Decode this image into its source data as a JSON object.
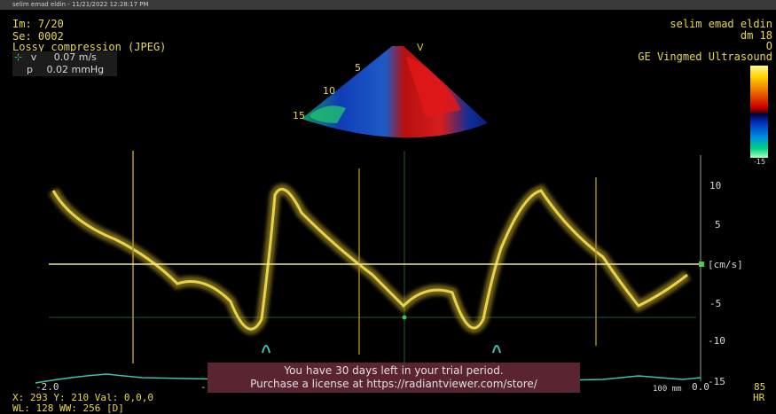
{
  "window": {
    "title": "selim emad eldin - 11/21/2022 12:28:17 PM"
  },
  "overlay_left": {
    "image": "Im: 7/20",
    "series": "Se: 0002",
    "compression": "Lossy compression (JPEG)",
    "measure": {
      "v_label": "v",
      "v_value": "0.07 m/s",
      "p_label": "p",
      "p_value": "0.02 mmHg"
    }
  },
  "overlay_right": {
    "patient": "selim emad eldin",
    "study": "dm 18",
    "sex": "O",
    "device": "GE Vingmed Ultrasound"
  },
  "sector": {
    "depth_labels": [
      "5",
      "10",
      "15"
    ],
    "marker": "V"
  },
  "colorbar": {
    "bottom_label": "-15"
  },
  "doppler": {
    "axis_labels": [
      "10",
      "5",
      "[cm/s]",
      "-5",
      "-10",
      "-15"
    ],
    "x_labels": [
      "-2.0",
      "-1",
      "100 mm",
      "0.0"
    ],
    "hr_value": "85",
    "hr_label": "HR"
  },
  "trial": {
    "line1": "You have 30 days left in your trial period.",
    "line2": "Purchase a license at https://radiantviewer.com/store/"
  },
  "status": {
    "coords": "X: 293 Y: 210 Val: 0,0,0",
    "window_level": "WL: 128 WW: 256 [D]"
  },
  "colors": {
    "trace": "#e8d34a",
    "baseline": "#f0e8a0",
    "ecg": "#40c0b0",
    "trial_bg": "#5a2430"
  }
}
